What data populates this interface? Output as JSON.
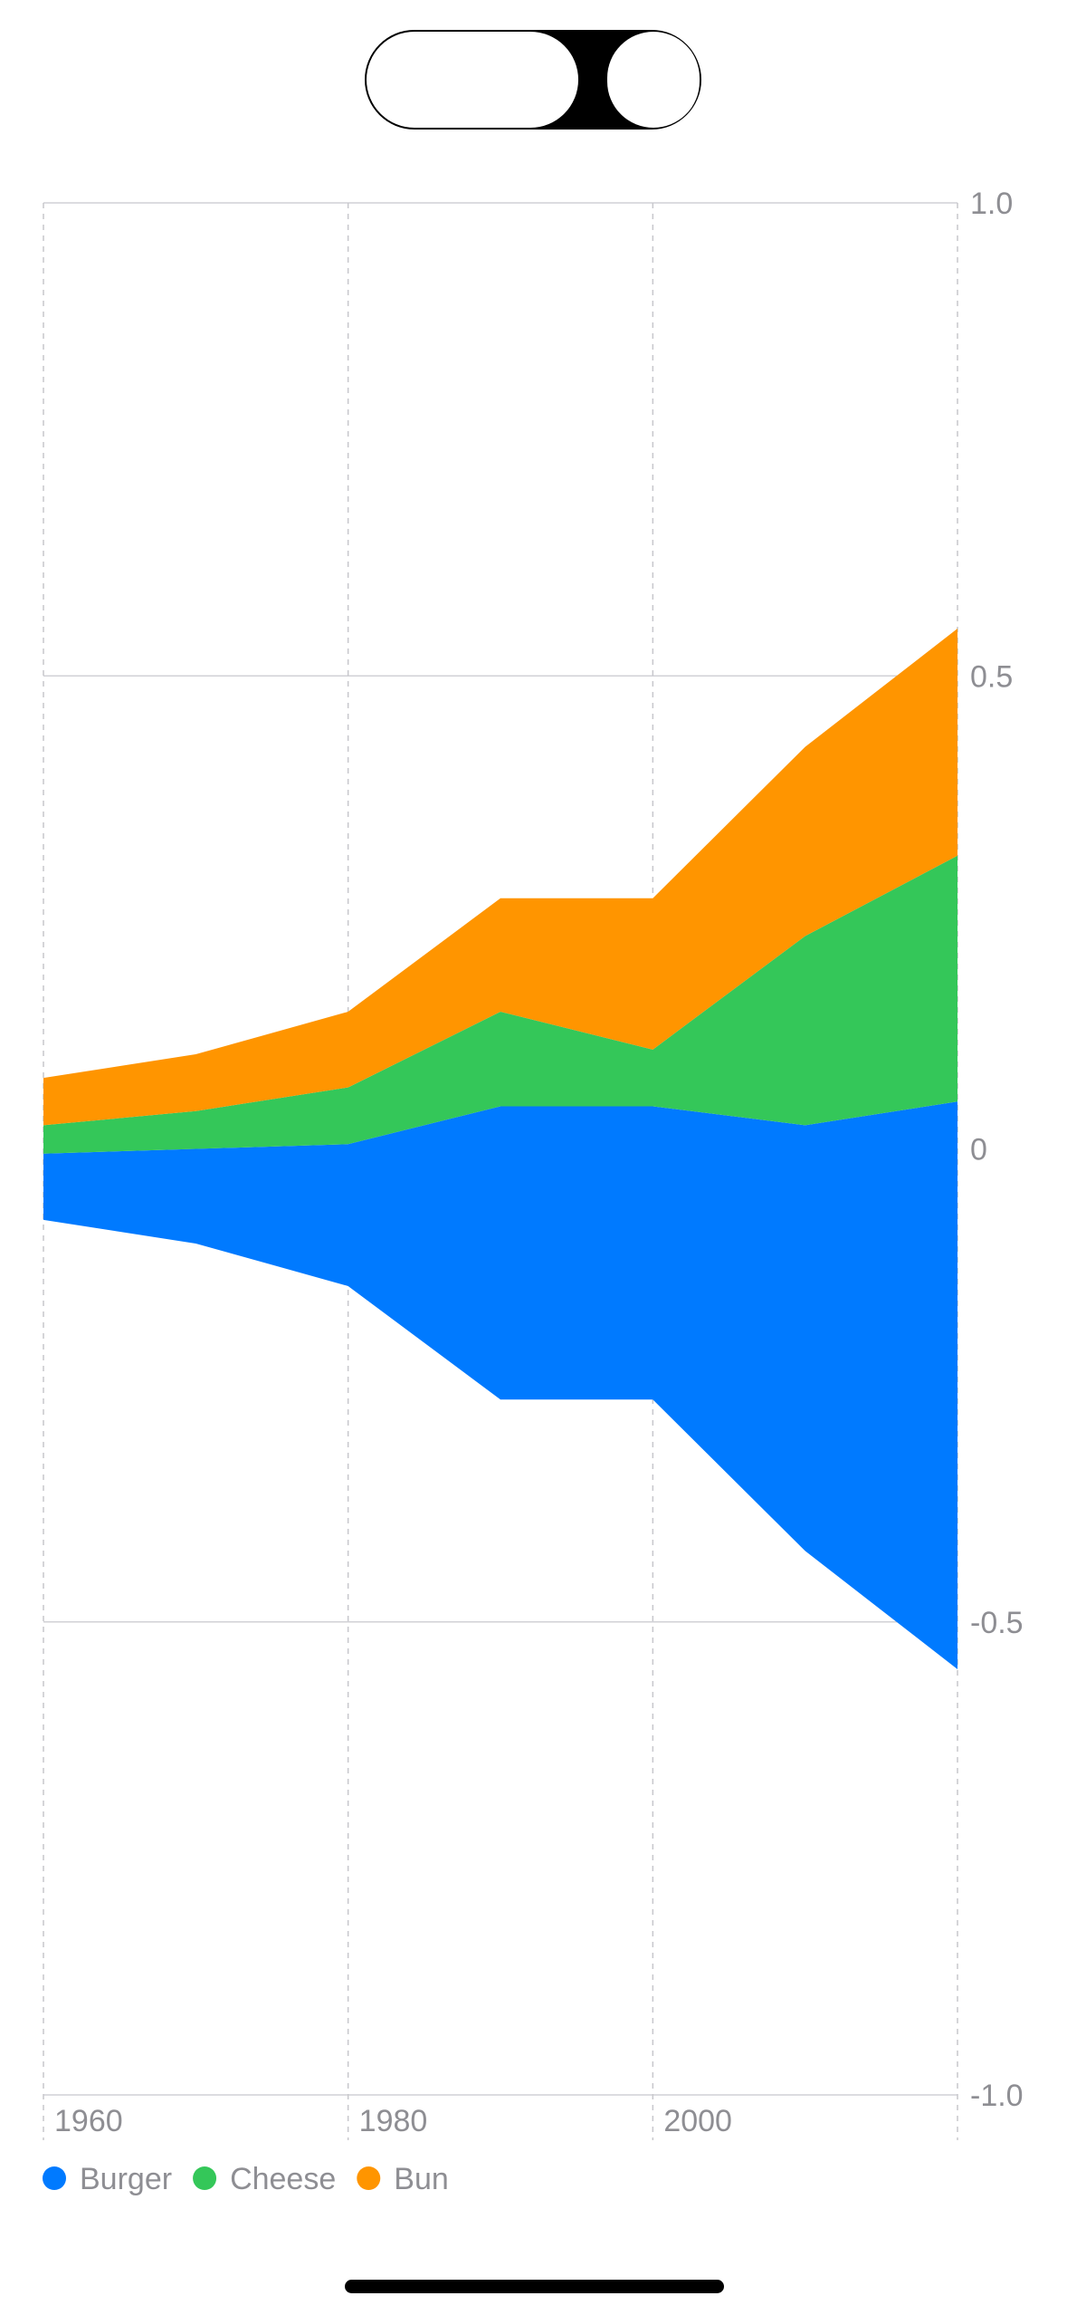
{
  "chart_data": {
    "type": "area",
    "stacking": "centered",
    "x": [
      1960,
      1970,
      1980,
      1990,
      2000,
      2010,
      2020
    ],
    "x_ticks": [
      1960,
      1980,
      2000
    ],
    "x_tick_labels": [
      "1960",
      "1980",
      "2000"
    ],
    "xlim": [
      1960,
      2020
    ],
    "ylim": [
      -1.0,
      1.0
    ],
    "y_ticks": [
      1.0,
      0.5,
      0,
      -0.5,
      -1.0
    ],
    "y_tick_labels": [
      "1.0",
      "0.5",
      "0",
      "-0.5",
      "-1.0"
    ],
    "y_axis_position": "right",
    "grid": true,
    "legend_position": "bottom-left",
    "series": [
      {
        "name": "Burger",
        "color": "#007AFF",
        "values": [
          0.07,
          0.1,
          0.15,
          0.31,
          0.31,
          0.45,
          0.6
        ]
      },
      {
        "name": "Cheese",
        "color": "#34C759",
        "values": [
          0.03,
          0.04,
          0.06,
          0.1,
          0.06,
          0.2,
          0.26
        ]
      },
      {
        "name": "Bun",
        "color": "#FF9500",
        "values": [
          0.05,
          0.06,
          0.08,
          0.12,
          0.16,
          0.2,
          0.24
        ]
      }
    ],
    "title": "",
    "xlabel": "",
    "ylabel": ""
  }
}
